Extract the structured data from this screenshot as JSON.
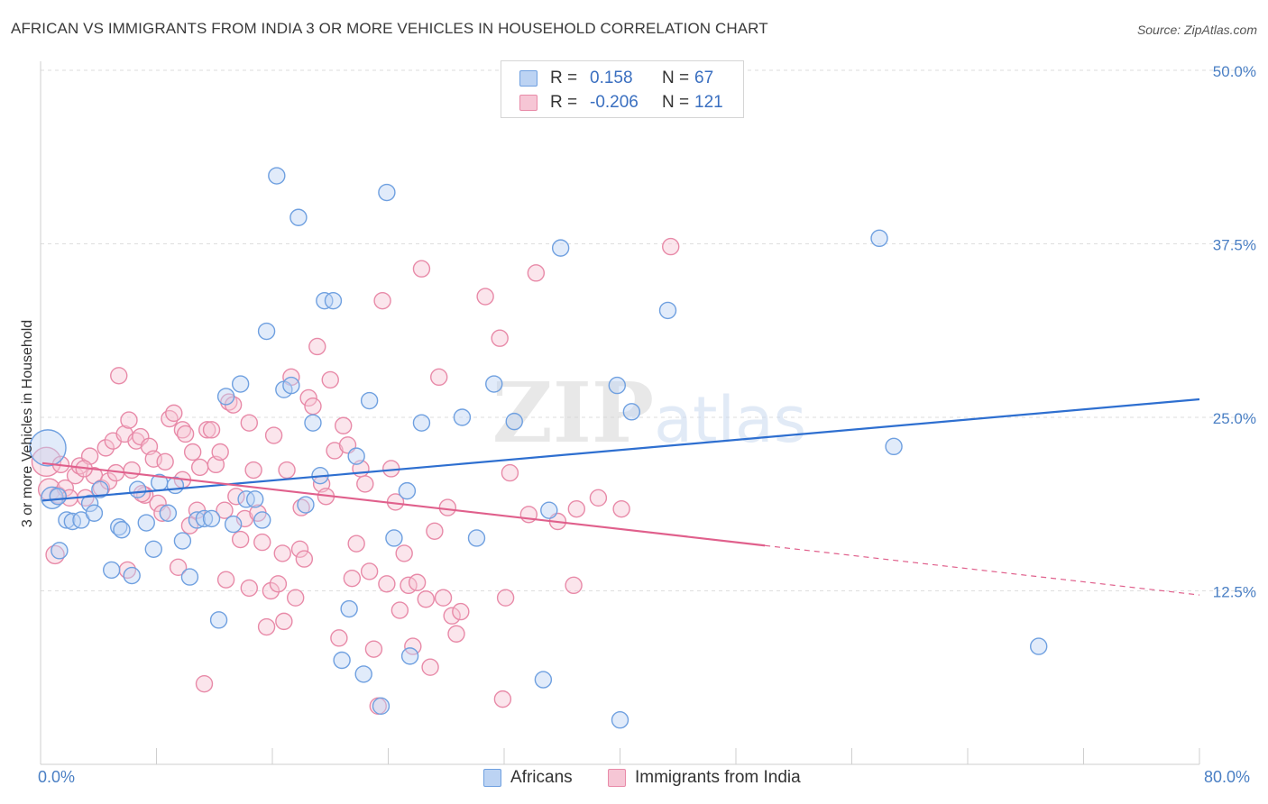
{
  "title": "AFRICAN VS IMMIGRANTS FROM INDIA 3 OR MORE VEHICLES IN HOUSEHOLD CORRELATION CHART",
  "source": "Source: ZipAtlas.com",
  "watermark": "ZIPatlas",
  "colors": {
    "blue": "#6fa0e0",
    "blue_fill": "#bcd3f3",
    "blue_line": "#2e6fd0",
    "pink": "#e88aa8",
    "pink_fill": "#f6c6d5",
    "pink_line": "#e0608c",
    "tick_text": "#4a7fc4"
  },
  "legend": {
    "r_label": "R =",
    "n_label": "N =",
    "rows": [
      {
        "series": "Africans",
        "r": "0.158",
        "n": "67"
      },
      {
        "series": "Immigrants from India",
        "r": "-0.206",
        "n": "121"
      }
    ]
  },
  "chart_data": {
    "type": "scatter",
    "ylabel": "3 or more Vehicles in Household",
    "xlim": [
      0,
      80
    ],
    "ylim": [
      0,
      50
    ],
    "x_tick_labels": {
      "min": "0.0%",
      "max": "80.0%"
    },
    "y_ticks": [
      {
        "value": 50,
        "label": "50.0%"
      },
      {
        "value": 37.5,
        "label": "37.5%"
      },
      {
        "value": 25,
        "label": "25.0%"
      },
      {
        "value": 12.5,
        "label": "12.5%"
      }
    ],
    "grid": true,
    "legend_position": "bottom-center",
    "series": [
      {
        "name": "Africans",
        "trend": {
          "x": [
            0,
            80
          ],
          "y": [
            19.0,
            26.3
          ],
          "dashed_from": null
        },
        "points": [
          [
            0.5,
            22.8,
            20
          ],
          [
            0.8,
            19.2,
            12
          ],
          [
            1.2,
            19.3,
            9
          ],
          [
            1.3,
            15.4,
            9
          ],
          [
            1.8,
            17.6,
            9
          ],
          [
            2.2,
            17.5,
            9
          ],
          [
            2.8,
            17.6,
            9
          ],
          [
            3.4,
            18.8,
            9
          ],
          [
            3.7,
            18.1,
            9
          ],
          [
            4.1,
            19.8,
            9
          ],
          [
            4.9,
            14,
            9
          ],
          [
            5.4,
            17.1,
            9
          ],
          [
            5.6,
            16.9,
            9
          ],
          [
            6.3,
            13.6,
            9
          ],
          [
            6.7,
            19.8,
            9
          ],
          [
            7.3,
            17.4,
            9
          ],
          [
            7.8,
            15.5,
            9
          ],
          [
            8.2,
            20.3,
            9
          ],
          [
            8.8,
            18.1,
            9
          ],
          [
            9.3,
            20.1,
            9
          ],
          [
            9.8,
            16.1,
            9
          ],
          [
            10.3,
            13.5,
            9
          ],
          [
            10.8,
            17.6,
            9
          ],
          [
            11.3,
            17.7,
            9
          ],
          [
            11.8,
            17.7,
            9
          ],
          [
            12.3,
            10.4,
            9
          ],
          [
            12.8,
            26.5,
            9
          ],
          [
            13.3,
            17.3,
            9
          ],
          [
            13.8,
            27.4,
            9
          ],
          [
            14.2,
            19.1,
            9
          ],
          [
            14.8,
            19.1,
            9
          ],
          [
            15.3,
            17.6,
            9
          ],
          [
            15.6,
            31.2,
            9
          ],
          [
            16.3,
            42.4,
            9
          ],
          [
            16.8,
            27,
            9
          ],
          [
            17.3,
            27.3,
            9
          ],
          [
            17.8,
            39.4,
            9
          ],
          [
            18.3,
            18.7,
            9
          ],
          [
            18.8,
            24.6,
            9
          ],
          [
            19.3,
            20.8,
            9
          ],
          [
            19.6,
            33.4,
            9
          ],
          [
            20.2,
            33.4,
            9
          ],
          [
            20.8,
            7.5,
            9
          ],
          [
            21.3,
            11.2,
            9
          ],
          [
            21.8,
            22.2,
            9
          ],
          [
            22.3,
            6.5,
            9
          ],
          [
            22.7,
            26.2,
            9
          ],
          [
            23.5,
            4.2,
            9
          ],
          [
            23.9,
            41.2,
            9
          ],
          [
            24.4,
            16.3,
            9
          ],
          [
            25.3,
            19.7,
            9
          ],
          [
            25.5,
            7.8,
            9
          ],
          [
            26.3,
            24.6,
            9
          ],
          [
            29.1,
            25,
            9
          ],
          [
            30.1,
            16.3,
            9
          ],
          [
            31.3,
            27.4,
            9
          ],
          [
            32.7,
            24.7,
            9
          ],
          [
            34.7,
            6.1,
            9
          ],
          [
            35.1,
            18.3,
            9
          ],
          [
            35.9,
            37.2,
            9
          ],
          [
            39.8,
            27.3,
            9
          ],
          [
            40.8,
            25.4,
            9
          ],
          [
            43.3,
            32.7,
            9
          ],
          [
            57.9,
            37.9,
            9
          ],
          [
            58.9,
            22.9,
            9
          ],
          [
            68.9,
            8.5,
            9
          ],
          [
            40.0,
            3.2,
            9
          ]
        ]
      },
      {
        "name": "Immigrants from India",
        "trend": {
          "x": [
            0,
            80
          ],
          "y": [
            21.7,
            12.2
          ],
          "dashed_from": 50
        },
        "points": [
          [
            0.4,
            21.8,
            16
          ],
          [
            0.6,
            19.8,
            12
          ],
          [
            1,
            15.1,
            10
          ],
          [
            1.2,
            19.4,
            9
          ],
          [
            1.4,
            21.6,
            9
          ],
          [
            1.7,
            19.9,
            9
          ],
          [
            2,
            19.2,
            9
          ],
          [
            2.4,
            20.8,
            9
          ],
          [
            2.7,
            21.5,
            9
          ],
          [
            3.1,
            19.2,
            9
          ],
          [
            3.4,
            22.2,
            9
          ],
          [
            3.7,
            20.8,
            9
          ],
          [
            4.2,
            19.9,
            9
          ],
          [
            4.5,
            22.8,
            9
          ],
          [
            4.7,
            20.4,
            9
          ],
          [
            5,
            23.3,
            9
          ],
          [
            5.2,
            21.0,
            9
          ],
          [
            5.4,
            28.0,
            9
          ],
          [
            5.8,
            23.8,
            9
          ],
          [
            6.1,
            24.8,
            9
          ],
          [
            6.3,
            21.2,
            9
          ],
          [
            6.6,
            23.3,
            9
          ],
          [
            6.9,
            23.6,
            9
          ],
          [
            7.2,
            19.4,
            9
          ],
          [
            7.5,
            22.9,
            9
          ],
          [
            7.8,
            22.0,
            9
          ],
          [
            8.1,
            18.8,
            9
          ],
          [
            8.4,
            18.1,
            9
          ],
          [
            8.6,
            21.8,
            9
          ],
          [
            8.9,
            24.9,
            9
          ],
          [
            9.2,
            25.3,
            9
          ],
          [
            9.5,
            14.2,
            9
          ],
          [
            9.8,
            24.1,
            9
          ],
          [
            10.0,
            23.8,
            9
          ],
          [
            10.3,
            17.2,
            9
          ],
          [
            10.5,
            22.5,
            9
          ],
          [
            10.8,
            18.3,
            9
          ],
          [
            11.0,
            21.4,
            9
          ],
          [
            11.3,
            5.8,
            9
          ],
          [
            11.5,
            24.1,
            9
          ],
          [
            11.8,
            24.1,
            9
          ],
          [
            12.1,
            21.6,
            9
          ],
          [
            12.4,
            22.5,
            9
          ],
          [
            12.7,
            18.3,
            9
          ],
          [
            13.0,
            26.1,
            9
          ],
          [
            13.3,
            25.9,
            9
          ],
          [
            13.5,
            19.3,
            9
          ],
          [
            13.8,
            16.2,
            9
          ],
          [
            14.1,
            17.7,
            9
          ],
          [
            14.4,
            24.6,
            9
          ],
          [
            14.7,
            21.2,
            9
          ],
          [
            15.0,
            18.1,
            9
          ],
          [
            15.3,
            16.0,
            9
          ],
          [
            15.6,
            9.9,
            9
          ],
          [
            15.9,
            12.5,
            9
          ],
          [
            16.1,
            23.7,
            9
          ],
          [
            16.4,
            13.0,
            9
          ],
          [
            16.7,
            15.2,
            9
          ],
          [
            17.0,
            21.2,
            9
          ],
          [
            17.3,
            27.9,
            9
          ],
          [
            17.6,
            12.0,
            9
          ],
          [
            17.9,
            15.5,
            9
          ],
          [
            18.2,
            14.8,
            9
          ],
          [
            18.5,
            26.4,
            9
          ],
          [
            18.8,
            25.8,
            9
          ],
          [
            19.1,
            30.1,
            9
          ],
          [
            19.4,
            20.2,
            9
          ],
          [
            19.7,
            19.3,
            9
          ],
          [
            20.0,
            27.7,
            9
          ],
          [
            20.3,
            22.6,
            9
          ],
          [
            20.6,
            9.1,
            9
          ],
          [
            20.9,
            24.4,
            9
          ],
          [
            21.2,
            23.0,
            9
          ],
          [
            21.5,
            13.4,
            9
          ],
          [
            21.8,
            15.9,
            9
          ],
          [
            22.1,
            21.3,
            9
          ],
          [
            22.4,
            20.2,
            9
          ],
          [
            22.7,
            13.9,
            9
          ],
          [
            23.0,
            8.3,
            9
          ],
          [
            23.3,
            4.2,
            9
          ],
          [
            23.6,
            33.4,
            9
          ],
          [
            23.9,
            13.0,
            9
          ],
          [
            24.2,
            21.3,
            9
          ],
          [
            24.5,
            18.9,
            9
          ],
          [
            24.8,
            11.1,
            9
          ],
          [
            25.1,
            15.2,
            9
          ],
          [
            25.4,
            12.9,
            9
          ],
          [
            25.7,
            8.5,
            9
          ],
          [
            26.0,
            13.1,
            9
          ],
          [
            26.3,
            35.7,
            9
          ],
          [
            26.6,
            11.9,
            9
          ],
          [
            26.9,
            7.0,
            9
          ],
          [
            27.2,
            16.8,
            9
          ],
          [
            27.5,
            27.9,
            9
          ],
          [
            27.8,
            12.0,
            9
          ],
          [
            28.1,
            18.5,
            9
          ],
          [
            28.4,
            10.7,
            9
          ],
          [
            28.7,
            9.4,
            9
          ],
          [
            29.0,
            11.0,
            9
          ],
          [
            30.7,
            33.7,
            9
          ],
          [
            31.7,
            30.7,
            9
          ],
          [
            31.9,
            4.7,
            9
          ],
          [
            32.1,
            12.0,
            9
          ],
          [
            32.4,
            21.0,
            9
          ],
          [
            33.7,
            18.0,
            9
          ],
          [
            34.2,
            35.4,
            9
          ],
          [
            35.7,
            17.5,
            9
          ],
          [
            36.8,
            12.9,
            9
          ],
          [
            37.0,
            18.4,
            9
          ],
          [
            38.5,
            19.2,
            9
          ],
          [
            40.1,
            18.4,
            9
          ],
          [
            43.5,
            37.3,
            9
          ],
          [
            12.8,
            13.3,
            9
          ],
          [
            16.8,
            10.3,
            9
          ],
          [
            14.4,
            12.7,
            9
          ],
          [
            9.8,
            20.5,
            9
          ],
          [
            7.0,
            19.5,
            9
          ],
          [
            6.0,
            14.0,
            9
          ],
          [
            3.0,
            21.3,
            9
          ],
          [
            18.0,
            18.5,
            9
          ]
        ]
      }
    ]
  }
}
